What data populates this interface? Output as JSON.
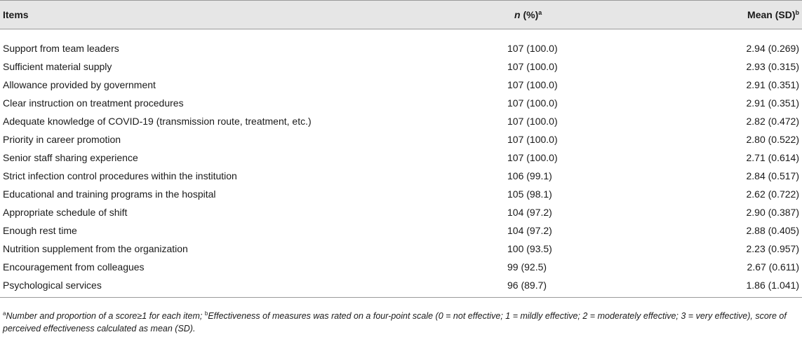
{
  "table": {
    "headers": {
      "items": "Items",
      "n_label": "n",
      "n_suffix": " (%)",
      "n_sup": "a",
      "mean": "Mean (SD)",
      "mean_sup": "b"
    },
    "rows": [
      {
        "item": "Support from team leaders",
        "n": "107 (100.0)",
        "mean": "2.94 (0.269)"
      },
      {
        "item": "Sufficient material supply",
        "n": "107 (100.0)",
        "mean": "2.93 (0.315)"
      },
      {
        "item": "Allowance provided by government",
        "n": "107 (100.0)",
        "mean": "2.91 (0.351)"
      },
      {
        "item": "Clear instruction on treatment procedures",
        "n": "107 (100.0)",
        "mean": "2.91 (0.351)"
      },
      {
        "item": "Adequate knowledge of COVID-19 (transmission route, treatment, etc.)",
        "n": "107 (100.0)",
        "mean": "2.82 (0.472)"
      },
      {
        "item": "Priority in career promotion",
        "n": "107 (100.0)",
        "mean": "2.80 (0.522)"
      },
      {
        "item": "Senior staff sharing experience",
        "n": "107 (100.0)",
        "mean": "2.71 (0.614)"
      },
      {
        "item": "Strict infection control procedures within the institution",
        "n": "106 (99.1)",
        "mean": "2.84 (0.517)"
      },
      {
        "item": "Educational and training programs in the hospital",
        "n": "105 (98.1)",
        "mean": "2.62 (0.722)"
      },
      {
        "item": "Appropriate schedule of shift",
        "n": "104 (97.2)",
        "mean": "2.90 (0.387)"
      },
      {
        "item": "Enough rest time",
        "n": "104 (97.2)",
        "mean": "2.88 (0.405)"
      },
      {
        "item": "Nutrition supplement from the organization",
        "n": "100 (93.5)",
        "mean": "2.23 (0.957)"
      },
      {
        "item": "Encouragement from colleagues",
        "n": "99 (92.5)",
        "mean": "2.67 (0.611)"
      },
      {
        "item": "Psychological services",
        "n": "96 (89.7)",
        "mean": "1.86 (1.041)"
      }
    ]
  },
  "footnote": {
    "sup_a": "a",
    "text_a": "Number and proportion of a score≥1 for each item; ",
    "sup_b": "b",
    "text_b": "Effectiveness of measures was rated on a four-point scale (0 = not effective; 1 = mildly effective; 2 = moderately effective; 3 = very effective), score of perceived effectiveness calculated as mean (SD)."
  }
}
